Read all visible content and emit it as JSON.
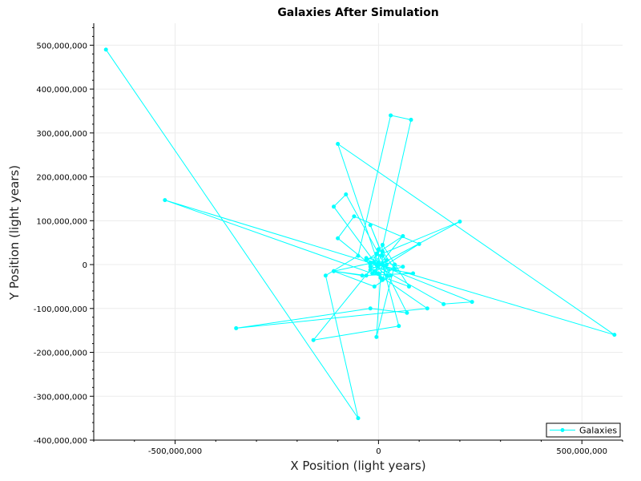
{
  "chart_data": {
    "type": "line",
    "title": "Galaxies After Simulation",
    "xlabel": "X Position (light years)",
    "ylabel": "Y Position (light years)",
    "xlim": [
      -700000000,
      600000000
    ],
    "ylim": [
      -400000000,
      550000000
    ],
    "x_ticks": [
      {
        "value": -500000000,
        "label": "-500,000,000"
      },
      {
        "value": 0,
        "label": "0"
      },
      {
        "value": 500000000,
        "label": "500,000,000"
      }
    ],
    "y_ticks": [
      {
        "value": 500000000,
        "label": "500,000,000"
      },
      {
        "value": 400000000,
        "label": "400,000,000"
      },
      {
        "value": 300000000,
        "label": "300,000,000"
      },
      {
        "value": 200000000,
        "label": "200,000,000"
      },
      {
        "value": 100000000,
        "label": "100,000,000"
      },
      {
        "value": 0,
        "label": "0"
      },
      {
        "value": -100000000,
        "label": "-100,000,000"
      },
      {
        "value": -200000000,
        "label": "-200,000,000"
      },
      {
        "value": -300000000,
        "label": "-300,000,000"
      },
      {
        "value": -400000000,
        "label": "-400,000,000"
      }
    ],
    "grid": true,
    "legend": {
      "position": "bottom-right",
      "entries": [
        "Galaxies"
      ]
    },
    "series": [
      {
        "name": "Galaxies",
        "color": "#00FFFF",
        "marker": "circle",
        "x": [
          -670000000,
          -50000000,
          -130000000,
          -50000000,
          30000000,
          80000000,
          0,
          580000000,
          -100000000,
          0,
          230000000,
          160000000,
          -20000000,
          40000000,
          10000000,
          -30000000,
          -110000000,
          -10000000,
          0,
          0,
          -5000000,
          120000000,
          -350000000,
          -20000000,
          70000000,
          10000000,
          50000000,
          -160000000,
          -20000000,
          200000000,
          -30000000,
          -5000000,
          60000000,
          -15000000,
          100000000,
          -60000000,
          -100000000,
          -20000000,
          10000000,
          75000000,
          -525000000,
          -5000000,
          -110000000,
          -80000000,
          30000000,
          -10000000,
          -110000000,
          -40000000,
          85000000,
          -20000000,
          10000000,
          20000000,
          -20000000,
          10000000,
          5000000,
          -5000000,
          40000000,
          20000000,
          -30000000,
          60000000,
          0,
          -10000000,
          20000000,
          0
        ],
        "y": [
          490000000,
          -350000000,
          -25000000,
          20000000,
          340000000,
          330000000,
          0,
          -160000000,
          275000000,
          0,
          -85000000,
          -90000000,
          5000000,
          -10000000,
          30000000,
          -25000000,
          -15000000,
          5000000,
          35000000,
          5000000,
          -20000000,
          -100000000,
          -145000000,
          -100000000,
          -110000000,
          0,
          -140000000,
          -172000000,
          -12000000,
          98000000,
          10000000,
          25000000,
          65000000,
          -20000000,
          47000000,
          110000000,
          60000000,
          0,
          45000000,
          -50000000,
          147000000,
          0,
          132000000,
          160000000,
          -25000000,
          -50000000,
          -15000000,
          -25000000,
          -20000000,
          -5000000,
          -35000000,
          0,
          90000000,
          20000000,
          -30000000,
          -165000000,
          0,
          -25000000,
          15000000,
          -5000000,
          -20000000,
          -15000000,
          10000000,
          0
        ]
      }
    ]
  }
}
